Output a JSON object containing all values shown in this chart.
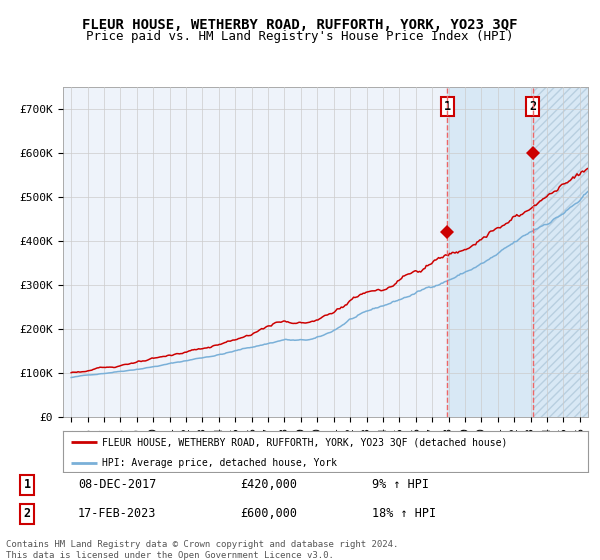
{
  "title": "FLEUR HOUSE, WETHERBY ROAD, RUFFORTH, YORK, YO23 3QF",
  "subtitle": "Price paid vs. HM Land Registry's House Price Index (HPI)",
  "legend_line1": "FLEUR HOUSE, WETHERBY ROAD, RUFFORTH, YORK, YO23 3QF (detached house)",
  "legend_line2": "HPI: Average price, detached house, York",
  "annotation1_date": "08-DEC-2017",
  "annotation1_price": "£420,000",
  "annotation1_hpi": "9% ↑ HPI",
  "annotation2_date": "17-FEB-2023",
  "annotation2_price": "£600,000",
  "annotation2_hpi": "18% ↑ HPI",
  "footer": "Contains HM Land Registry data © Crown copyright and database right 2024.\nThis data is licensed under the Open Government Licence v3.0.",
  "x_start_year": 1995,
  "x_end_year": 2026,
  "ylim": [
    0,
    750000
  ],
  "yticks": [
    0,
    100000,
    200000,
    300000,
    400000,
    500000,
    600000,
    700000
  ],
  "ytick_labels": [
    "£0",
    "£100K",
    "£200K",
    "£300K",
    "£400K",
    "£500K",
    "£600K",
    "£700K"
  ],
  "purchase1_year": 2017.92,
  "purchase1_value": 420000,
  "purchase2_year": 2023.12,
  "purchase2_value": 600000,
  "background_color": "#ffffff",
  "plot_bg_color": "#eef3fa",
  "shaded_region_color": "#d8e8f5",
  "grid_color": "#cccccc",
  "hpi_line_color": "#7ab0d8",
  "house_line_color": "#cc0000",
  "dashed_line_color": "#ee6666",
  "marker_color": "#cc0000",
  "title_fontsize": 10.0,
  "subtitle_fontsize": 9.0,
  "tick_fontsize": 8.0,
  "legend_fontsize": 7.0,
  "ann_fontsize": 8.5,
  "footer_fontsize": 6.5
}
